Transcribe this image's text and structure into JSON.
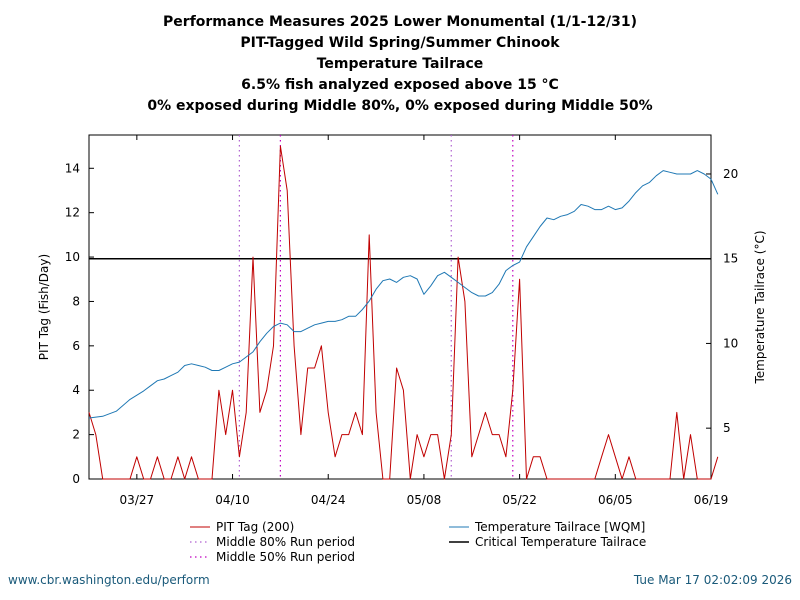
{
  "titles": [
    "Performance Measures 2025 Lower Monumental (1/1-12/31)",
    "PIT-Tagged Wild Spring/Summer Chinook",
    "Temperature Tailrace",
    "6.5% fish analyzed exposed above 15 °C",
    "0% exposed during Middle 80%, 0% exposed during Middle 50%"
  ],
  "footer": {
    "left": "www.cbr.washington.edu/perform",
    "right": "Tue Mar 17 02:02:09 2026"
  },
  "colors": {
    "pit": "#c00000",
    "temp": "#1f78b4",
    "critical": "#000000",
    "mid80": "#b060d0",
    "mid50": "#c000c0"
  },
  "chart_data": {
    "type": "line",
    "x_range_days": [
      0,
      91
    ],
    "x_ticks": [
      {
        "day": 7,
        "label": "03/27"
      },
      {
        "day": 21,
        "label": "04/10"
      },
      {
        "day": 35,
        "label": "04/24"
      },
      {
        "day": 49,
        "label": "05/08"
      },
      {
        "day": 63,
        "label": "05/22"
      },
      {
        "day": 77,
        "label": "06/05"
      },
      {
        "day": 91,
        "label": "06/19"
      }
    ],
    "x_start_date": "03/20",
    "y_left": {
      "label": "PIT Tag (Fish/Day)",
      "range": [
        0,
        15.5
      ],
      "ticks": [
        0,
        2,
        4,
        6,
        8,
        10,
        12,
        14
      ]
    },
    "y_right": {
      "label": "Temperature Tailrace (°C)",
      "range": [
        2,
        22.3
      ],
      "ticks": [
        5,
        10,
        15,
        20
      ]
    },
    "critical_temperature": 15,
    "middle80_days": [
      22,
      53
    ],
    "middle50_days": [
      28,
      62
    ],
    "series": [
      {
        "name": "PIT Tag (200)",
        "axis": "left",
        "days": [
          0,
          1,
          2,
          3,
          4,
          5,
          6,
          7,
          8,
          9,
          10,
          11,
          12,
          13,
          14,
          15,
          16,
          17,
          18,
          19,
          20,
          21,
          22,
          23,
          24,
          25,
          26,
          27,
          28,
          29,
          30,
          31,
          32,
          33,
          34,
          35,
          36,
          37,
          38,
          39,
          40,
          41,
          42,
          43,
          44,
          45,
          46,
          47,
          48,
          49,
          50,
          51,
          52,
          53,
          54,
          55,
          56,
          57,
          58,
          59,
          60,
          61,
          62,
          63,
          64,
          65,
          66,
          67,
          68,
          69,
          70,
          71,
          72,
          73,
          74,
          75,
          76,
          77,
          78,
          79,
          80,
          81,
          82,
          83,
          84,
          85,
          86,
          87,
          88,
          89,
          90,
          91,
          92
        ],
        "values": [
          3,
          2,
          0,
          0,
          0,
          0,
          0,
          1,
          0,
          0,
          1,
          0,
          0,
          1,
          0,
          1,
          0,
          0,
          0,
          4,
          2,
          4,
          1,
          3,
          10,
          3,
          4,
          6,
          15,
          13,
          6,
          2,
          5,
          5,
          6,
          3,
          1,
          2,
          2,
          3,
          2,
          11,
          3,
          0,
          0,
          5,
          4,
          0,
          2,
          1,
          2,
          2,
          0,
          2,
          10,
          8,
          1,
          2,
          3,
          2,
          2,
          1,
          4,
          9,
          0,
          1,
          1,
          0,
          0,
          0,
          0,
          0,
          0,
          0,
          0,
          1,
          2,
          1,
          0,
          1,
          0,
          0,
          0,
          0,
          0,
          0,
          3,
          0,
          2,
          0,
          0,
          0,
          1
        ]
      },
      {
        "name": "Temperature Tailrace [WQM]",
        "axis": "right",
        "days": [
          0,
          2,
          4,
          6,
          8,
          9,
          10,
          11,
          12,
          13,
          14,
          15,
          16,
          17,
          18,
          19,
          20,
          21,
          22,
          23,
          24,
          25,
          26,
          27,
          28,
          29,
          30,
          31,
          32,
          33,
          34,
          35,
          36,
          37,
          38,
          39,
          40,
          41,
          42,
          43,
          44,
          45,
          46,
          47,
          48,
          49,
          50,
          51,
          52,
          53,
          54,
          55,
          56,
          57,
          58,
          59,
          60,
          61,
          62,
          63,
          64,
          65,
          66,
          67,
          68,
          69,
          70,
          71,
          72,
          73,
          74,
          75,
          76,
          77,
          78,
          79,
          80,
          81,
          82,
          83,
          84,
          85,
          86,
          87,
          88,
          89,
          90,
          91,
          92
        ],
        "values": [
          5.6,
          5.7,
          6.0,
          6.7,
          7.2,
          7.5,
          7.8,
          7.9,
          8.1,
          8.3,
          8.7,
          8.8,
          8.7,
          8.6,
          8.4,
          8.4,
          8.6,
          8.8,
          8.9,
          9.2,
          9.5,
          10.1,
          10.6,
          11.0,
          11.2,
          11.1,
          10.7,
          10.7,
          10.9,
          11.1,
          11.2,
          11.3,
          11.3,
          11.4,
          11.6,
          11.6,
          12.0,
          12.5,
          13.2,
          13.7,
          13.8,
          13.6,
          13.9,
          14.0,
          13.8,
          12.9,
          13.4,
          14.0,
          14.2,
          13.9,
          13.6,
          13.3,
          13.0,
          12.8,
          12.8,
          13.0,
          13.5,
          14.3,
          14.6,
          14.8,
          15.7,
          16.3,
          16.9,
          17.4,
          17.3,
          17.5,
          17.6,
          17.8,
          18.2,
          18.1,
          17.9,
          17.9,
          18.1,
          17.9,
          18.0,
          18.4,
          18.9,
          19.3,
          19.5,
          19.9,
          20.2,
          20.1,
          20.0,
          20.0,
          20.0,
          20.2,
          20.0,
          19.7,
          18.8
        ]
      }
    ],
    "legend": [
      {
        "label": "PIT Tag (200)",
        "kind": "pit"
      },
      {
        "label": "Temperature Tailrace [WQM]",
        "kind": "temp"
      },
      {
        "label": "Middle 80% Run period",
        "kind": "mid80"
      },
      {
        "label": "Critical Temperature Tailrace",
        "kind": "critical"
      },
      {
        "label": "Middle 50% Run period",
        "kind": "mid50"
      }
    ]
  }
}
